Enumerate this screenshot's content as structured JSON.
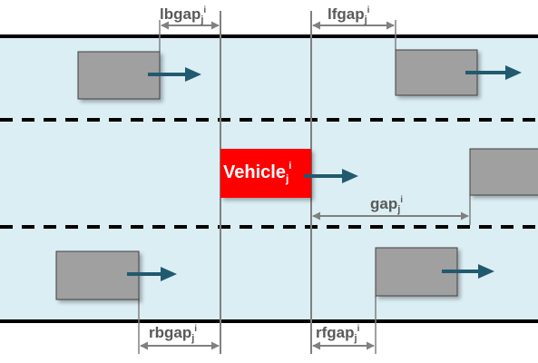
{
  "labels": {
    "lbgap": {
      "base": "lbgap",
      "sub": "j",
      "sup": "i"
    },
    "lfgap": {
      "base": "lfgap",
      "sub": "j",
      "sup": "i"
    },
    "gap": {
      "base": "gap",
      "sub": "j",
      "sup": "i"
    },
    "rbgap": {
      "base": "rbgap",
      "sub": "j",
      "sup": "i"
    },
    "rfgap": {
      "base": "rfgap",
      "sub": "j",
      "sup": "i"
    },
    "vehicle": {
      "base": "Vehicle",
      "sub": "j",
      "sup": "i"
    }
  },
  "colors": {
    "lane": "#dbeef4",
    "road_edge": "#000000",
    "lane_divider": "#000000",
    "car": "#a0a0a0",
    "car_border": "#404040",
    "ego_car": "#ff0000",
    "motion_arrow": "#215a6e",
    "gap_line": "#808080",
    "gap_text": "#595959"
  }
}
